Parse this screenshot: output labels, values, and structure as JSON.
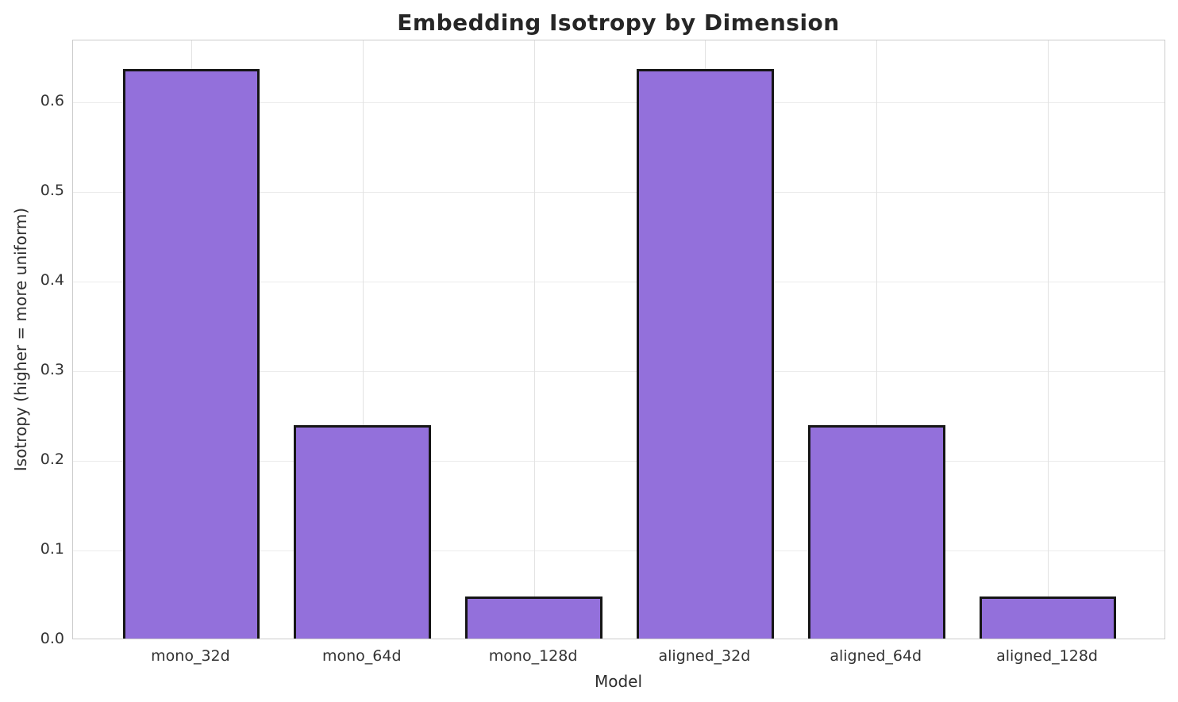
{
  "chart_data": {
    "type": "bar",
    "title": "Embedding Isotropy by Dimension",
    "xlabel": "Model",
    "ylabel": "Isotropy (higher = more uniform)",
    "categories": [
      "mono_32d",
      "mono_64d",
      "mono_128d",
      "aligned_32d",
      "aligned_64d",
      "aligned_128d"
    ],
    "values": [
      0.635,
      0.238,
      0.047,
      0.635,
      0.238,
      0.047
    ],
    "ylim": [
      0,
      0.669
    ],
    "yticks": [
      0.0,
      0.1,
      0.2,
      0.3,
      0.4,
      0.5,
      0.6
    ],
    "ytick_labels": [
      "0.0",
      "0.1",
      "0.2",
      "0.3",
      "0.4",
      "0.5",
      "0.6"
    ],
    "grid": true,
    "legend_position": "none",
    "bar_fill_color": "#9370DB",
    "bar_edge_color": "#161616",
    "bar_width_fraction": 0.8,
    "x_outer_pad": 0.69,
    "x_span": 6.38
  }
}
